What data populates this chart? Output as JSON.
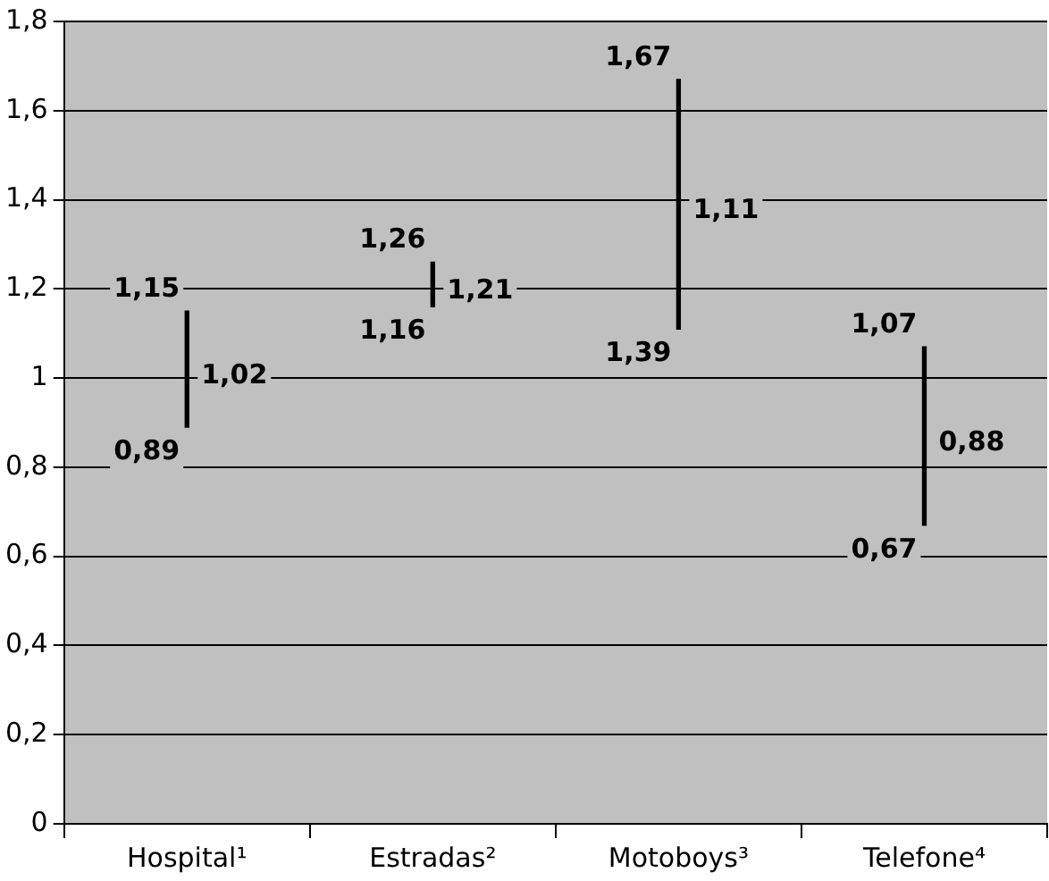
{
  "chart_data": {
    "type": "bar",
    "categories": [
      "Hospital¹",
      "Estradas²",
      "Motoboys³",
      "Telefone⁴"
    ],
    "series": [
      {
        "color": "#000000",
        "values": [
          0.26,
          0.1,
          0.56,
          0.4
        ],
        "base": [
          0.89,
          1.16,
          1.11,
          0.67
        ]
      }
    ],
    "ylim": [
      0,
      1.8
    ],
    "yticks": [
      0,
      {
        "value": 0.2,
        "label": "0,2"
      },
      {
        "value": 0.4,
        "label": "0,4"
      },
      {
        "value": 0.6,
        "label": "0,6"
      },
      {
        "value": 0.8,
        "label": "0,8"
      },
      1,
      {
        "value": 1.2,
        "label": "1,2"
      },
      {
        "value": 1.4,
        "label": "1,4"
      },
      {
        "value": 1.6,
        "label": "1,6"
      },
      {
        "value": 1.8,
        "label": "1,8"
      }
    ],
    "grid": "y",
    "legend": false,
    "annotations": [
      "1,15",
      "1,02",
      "0,89",
      "1,26",
      "1,21",
      "1,16",
      "1,67",
      "1,11",
      "1,39",
      "1,07",
      "0,88",
      "0,67"
    ]
  }
}
